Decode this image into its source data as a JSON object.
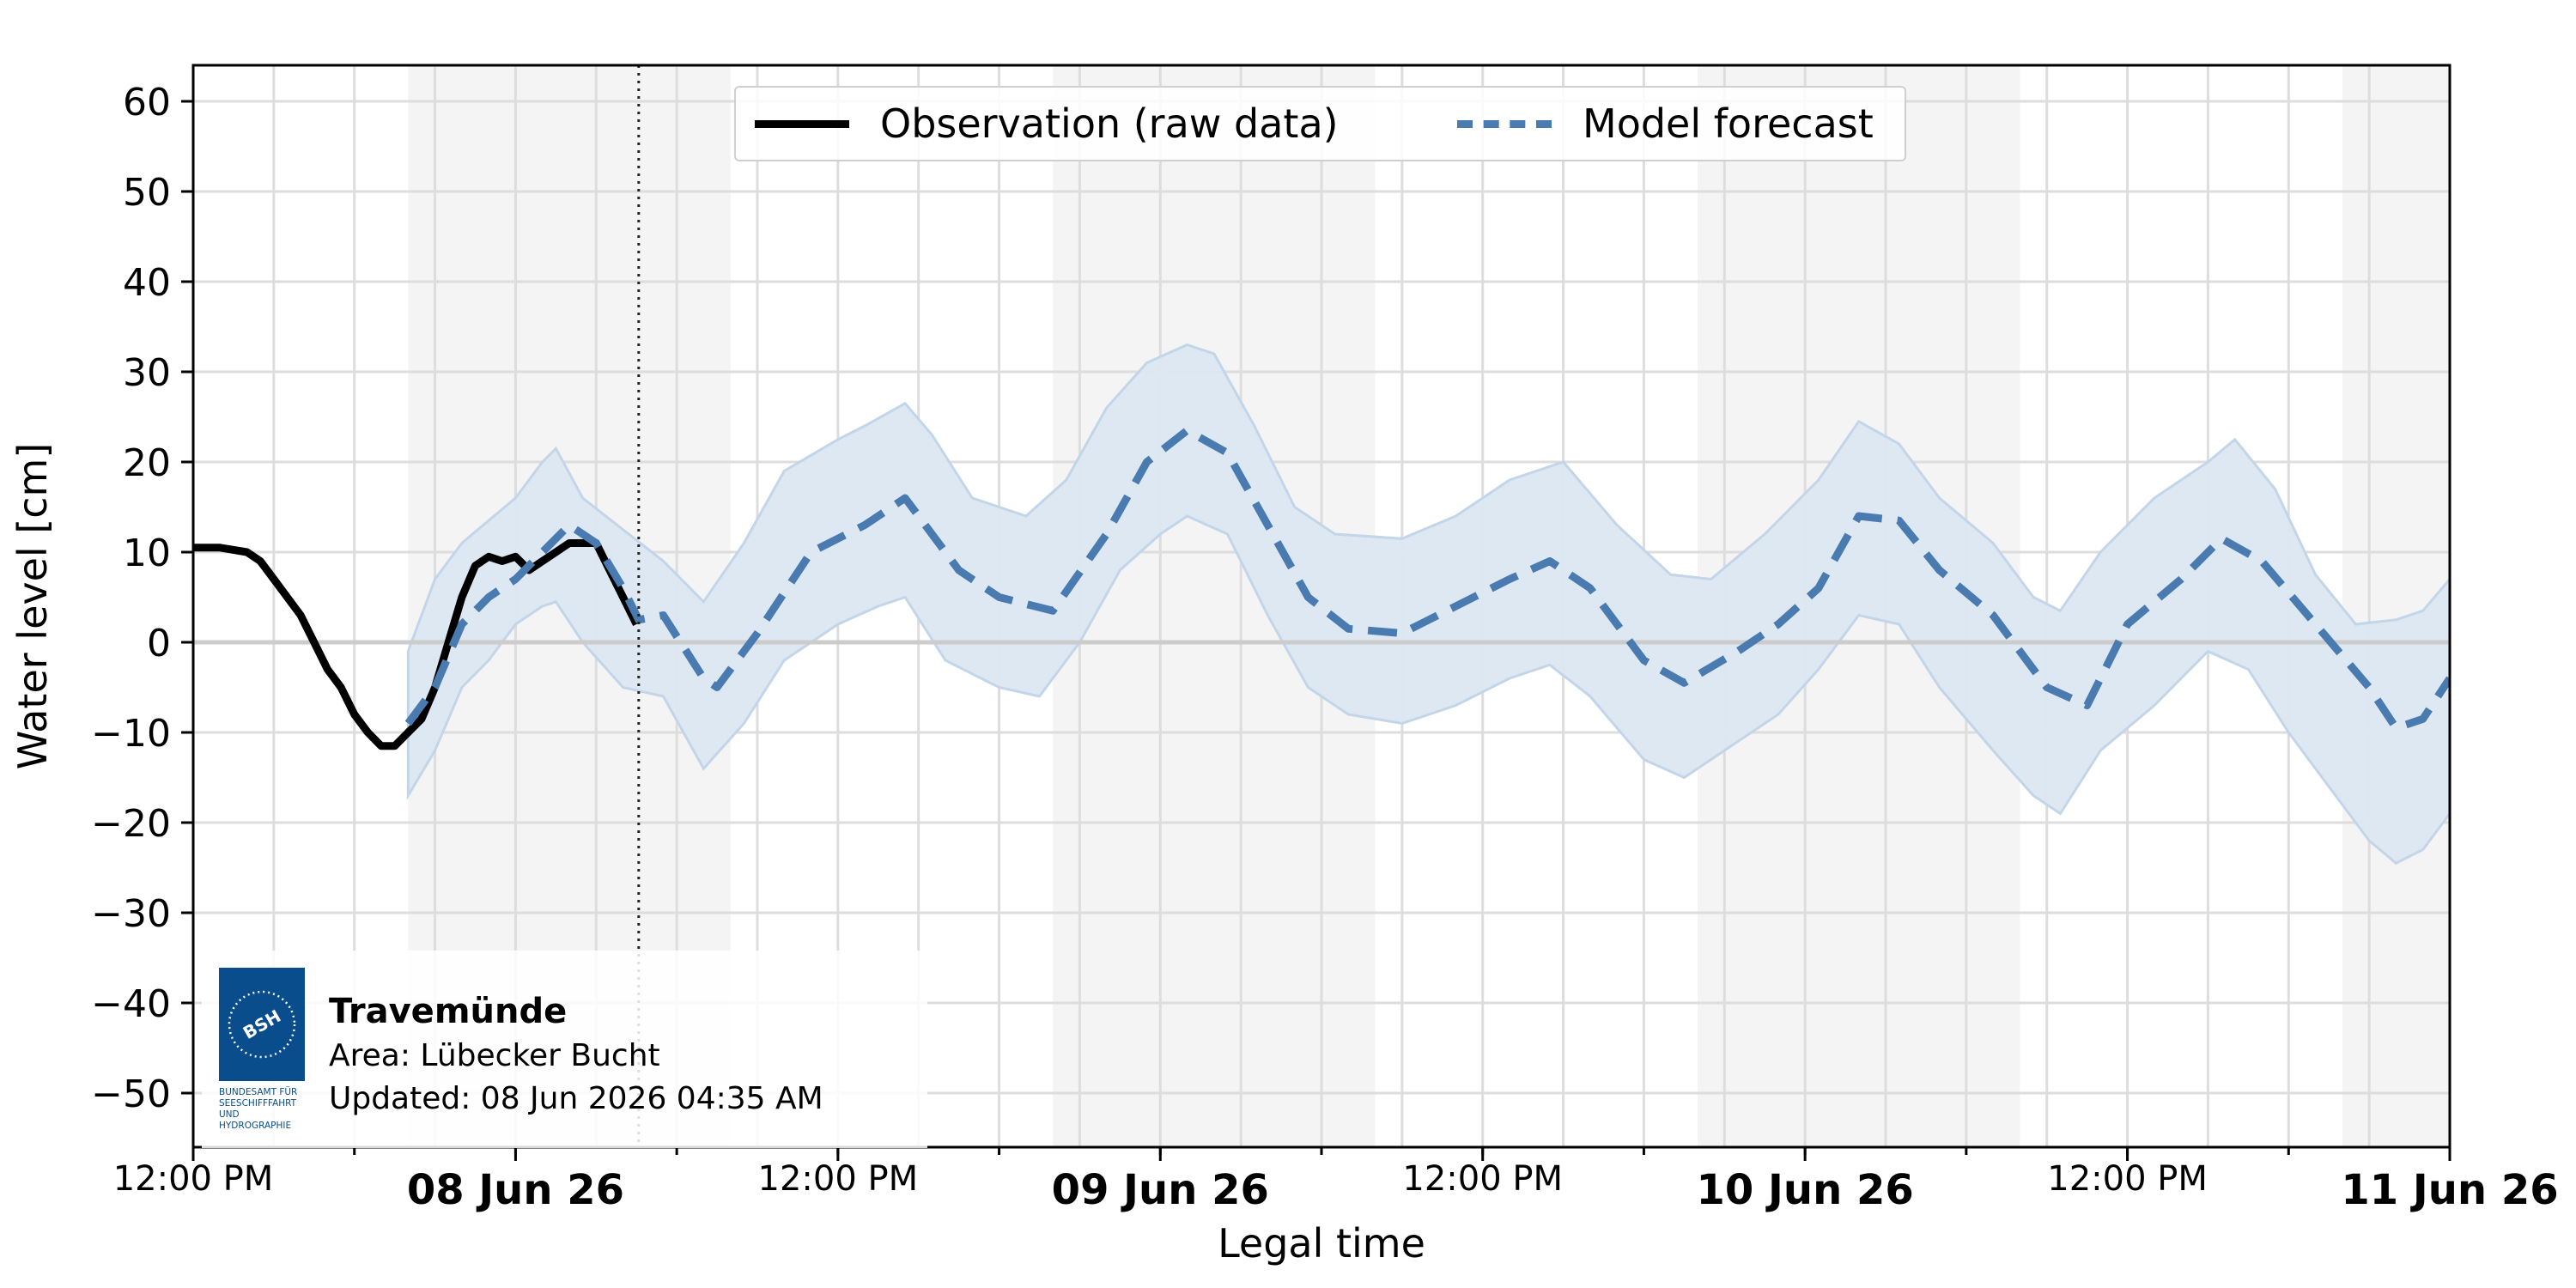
{
  "chart_data": {
    "type": "line",
    "xlabel": "Legal time",
    "ylabel": "Water level [cm]",
    "xlim": [
      "2026-06-07T12:00",
      "2026-06-11T00:00"
    ],
    "ylim": [
      -56,
      64
    ],
    "yticks": [
      60,
      50,
      40,
      30,
      20,
      10,
      0,
      -10,
      -20,
      -30,
      -40,
      -50
    ],
    "ytick_labels": [
      "60",
      "50",
      "40",
      "30",
      "20",
      "10",
      "0",
      "−10",
      "−20",
      "−30",
      "−40",
      "−50"
    ],
    "xticks": [
      {
        "t": "2026-06-07T12:00",
        "label": "12:00 PM",
        "bold": false
      },
      {
        "t": "2026-06-08T00:00",
        "label": "08 Jun 26",
        "bold": true
      },
      {
        "t": "2026-06-08T12:00",
        "label": "12:00 PM",
        "bold": false
      },
      {
        "t": "2026-06-09T00:00",
        "label": "09 Jun 26",
        "bold": true
      },
      {
        "t": "2026-06-09T12:00",
        "label": "12:00 PM",
        "bold": false
      },
      {
        "t": "2026-06-10T00:00",
        "label": "10 Jun 26",
        "bold": true
      },
      {
        "t": "2026-06-10T12:00",
        "label": "12:00 PM",
        "bold": false
      },
      {
        "t": "2026-06-11T00:00",
        "label": "11 Jun 26",
        "bold": true
      }
    ],
    "grid": true,
    "legend_position": "top-center",
    "now_marker": "2026-06-08T04:35",
    "night_bands": [
      [
        "2026-06-07T20:00",
        "2026-06-08T08:00"
      ],
      [
        "2026-06-08T20:00",
        "2026-06-09T08:00"
      ],
      [
        "2026-06-09T20:00",
        "2026-06-10T08:00"
      ],
      [
        "2026-06-10T20:00",
        "2026-06-11T00:00"
      ]
    ],
    "series": [
      {
        "name": "Observation (raw data)",
        "color": "#000000",
        "style": "solid",
        "points": [
          [
            "2026-06-07T12:00",
            10.5
          ],
          [
            "2026-06-07T13:00",
            10.5
          ],
          [
            "2026-06-07T14:00",
            10
          ],
          [
            "2026-06-07T14:30",
            9
          ],
          [
            "2026-06-07T15:00",
            7
          ],
          [
            "2026-06-07T15:30",
            5
          ],
          [
            "2026-06-07T16:00",
            3
          ],
          [
            "2026-06-07T16:30",
            0
          ],
          [
            "2026-06-07T17:00",
            -3
          ],
          [
            "2026-06-07T17:30",
            -5
          ],
          [
            "2026-06-07T18:00",
            -8
          ],
          [
            "2026-06-07T18:30",
            -10
          ],
          [
            "2026-06-07T19:00",
            -11.5
          ],
          [
            "2026-06-07T19:30",
            -11.5
          ],
          [
            "2026-06-07T20:00",
            -10
          ],
          [
            "2026-06-07T20:30",
            -8.5
          ],
          [
            "2026-06-07T21:00",
            -5
          ],
          [
            "2026-06-07T21:30",
            0
          ],
          [
            "2026-06-07T22:00",
            5
          ],
          [
            "2026-06-07T22:30",
            8.5
          ],
          [
            "2026-06-07T23:00",
            9.5
          ],
          [
            "2026-06-07T23:30",
            9
          ],
          [
            "2026-06-08T00:00",
            9.5
          ],
          [
            "2026-06-08T00:30",
            8
          ],
          [
            "2026-06-08T01:00",
            9
          ],
          [
            "2026-06-08T01:30",
            10
          ],
          [
            "2026-06-08T02:00",
            11
          ],
          [
            "2026-06-08T02:30",
            11
          ],
          [
            "2026-06-08T03:00",
            11
          ],
          [
            "2026-06-08T03:30",
            8
          ],
          [
            "2026-06-08T04:00",
            5
          ],
          [
            "2026-06-08T04:30",
            2
          ]
        ]
      },
      {
        "name": "Model forecast",
        "color": "#4a7bb0",
        "style": "dashed",
        "points": [
          [
            "2026-06-07T20:00",
            -9
          ],
          [
            "2026-06-07T21:00",
            -5
          ],
          [
            "2026-06-07T22:00",
            2
          ],
          [
            "2026-06-07T23:00",
            5
          ],
          [
            "2026-06-08T00:00",
            7
          ],
          [
            "2026-06-08T01:00",
            10
          ],
          [
            "2026-06-08T02:00",
            13
          ],
          [
            "2026-06-08T03:00",
            11
          ],
          [
            "2026-06-08T04:00",
            6
          ],
          [
            "2026-06-08T04:35",
            2.5
          ],
          [
            "2026-06-08T05:30",
            3
          ],
          [
            "2026-06-08T07:00",
            -4
          ],
          [
            "2026-06-08T07:30",
            -5
          ],
          [
            "2026-06-08T09:00",
            1
          ],
          [
            "2026-06-08T11:00",
            10
          ],
          [
            "2026-06-08T13:00",
            13
          ],
          [
            "2026-06-08T14:30",
            16
          ],
          [
            "2026-06-08T16:30",
            8
          ],
          [
            "2026-06-08T18:00",
            5
          ],
          [
            "2026-06-08T20:00",
            3.5
          ],
          [
            "2026-06-08T22:00",
            12
          ],
          [
            "2026-06-08T23:30",
            20
          ],
          [
            "2026-06-09T01:00",
            23.5
          ],
          [
            "2026-06-09T02:30",
            21
          ],
          [
            "2026-06-09T04:00",
            13
          ],
          [
            "2026-06-09T05:30",
            5
          ],
          [
            "2026-06-09T07:00",
            1.5
          ],
          [
            "2026-06-09T09:00",
            1
          ],
          [
            "2026-06-09T11:00",
            4
          ],
          [
            "2026-06-09T13:00",
            7
          ],
          [
            "2026-06-09T14:30",
            9
          ],
          [
            "2026-06-09T16:00",
            6
          ],
          [
            "2026-06-09T18:00",
            -2
          ],
          [
            "2026-06-09T19:30",
            -4.5
          ],
          [
            "2026-06-09T21:30",
            -1
          ],
          [
            "2026-06-09T23:00",
            2
          ],
          [
            "2026-06-10T00:30",
            6
          ],
          [
            "2026-06-10T02:00",
            14
          ],
          [
            "2026-06-10T03:30",
            13.5
          ],
          [
            "2026-06-10T05:00",
            8
          ],
          [
            "2026-06-10T07:00",
            3
          ],
          [
            "2026-06-10T09:00",
            -5
          ],
          [
            "2026-06-10T10:30",
            -7
          ],
          [
            "2026-06-10T12:00",
            2
          ],
          [
            "2026-06-10T14:00",
            7
          ],
          [
            "2026-06-10T15:30",
            11.5
          ],
          [
            "2026-06-10T17:00",
            9
          ],
          [
            "2026-06-10T19:00",
            2
          ],
          [
            "2026-06-10T21:00",
            -5
          ],
          [
            "2026-06-10T22:00",
            -9.5
          ],
          [
            "2026-06-10T23:00",
            -8.5
          ],
          [
            "2026-06-11T00:00",
            -4
          ]
        ]
      }
    ],
    "uncertainty_band": {
      "color": "#dce7f2",
      "upper": [
        [
          "2026-06-07T20:00",
          -1
        ],
        [
          "2026-06-07T21:00",
          7
        ],
        [
          "2026-06-07T22:00",
          11
        ],
        [
          "2026-06-07T23:00",
          13.5
        ],
        [
          "2026-06-08T00:00",
          16
        ],
        [
          "2026-06-08T01:00",
          20
        ],
        [
          "2026-06-08T01:30",
          21.5
        ],
        [
          "2026-06-08T02:30",
          16
        ],
        [
          "2026-06-08T04:00",
          12.5
        ],
        [
          "2026-06-08T05:30",
          9
        ],
        [
          "2026-06-08T07:00",
          4.5
        ],
        [
          "2026-06-08T08:30",
          11
        ],
        [
          "2026-06-08T10:00",
          19
        ],
        [
          "2026-06-08T12:00",
          22.5
        ],
        [
          "2026-06-08T13:00",
          24
        ],
        [
          "2026-06-08T14:30",
          26.5
        ],
        [
          "2026-06-08T15:30",
          23
        ],
        [
          "2026-06-08T17:00",
          16
        ],
        [
          "2026-06-08T19:00",
          14
        ],
        [
          "2026-06-08T20:30",
          18
        ],
        [
          "2026-06-08T22:00",
          26
        ],
        [
          "2026-06-08T23:30",
          31
        ],
        [
          "2026-06-09T01:00",
          33
        ],
        [
          "2026-06-09T02:00",
          32
        ],
        [
          "2026-06-09T03:30",
          24
        ],
        [
          "2026-06-09T05:00",
          15
        ],
        [
          "2026-06-09T06:30",
          12
        ],
        [
          "2026-06-09T09:00",
          11.5
        ],
        [
          "2026-06-09T11:00",
          14
        ],
        [
          "2026-06-09T13:00",
          18
        ],
        [
          "2026-06-09T15:00",
          20
        ],
        [
          "2026-06-09T17:00",
          13
        ],
        [
          "2026-06-09T19:00",
          7.5
        ],
        [
          "2026-06-09T20:30",
          7
        ],
        [
          "2026-06-09T22:30",
          12
        ],
        [
          "2026-06-10T00:30",
          18
        ],
        [
          "2026-06-10T02:00",
          24.5
        ],
        [
          "2026-06-10T03:30",
          22
        ],
        [
          "2026-06-10T05:00",
          16
        ],
        [
          "2026-06-10T07:00",
          11
        ],
        [
          "2026-06-10T08:30",
          5
        ],
        [
          "2026-06-10T09:30",
          3.5
        ],
        [
          "2026-06-10T11:00",
          10
        ],
        [
          "2026-06-10T13:00",
          16
        ],
        [
          "2026-06-10T15:00",
          20
        ],
        [
          "2026-06-10T16:00",
          22.5
        ],
        [
          "2026-06-10T17:30",
          17
        ],
        [
          "2026-06-10T19:00",
          7.5
        ],
        [
          "2026-06-10T20:30",
          2
        ],
        [
          "2026-06-10T22:00",
          2.5
        ],
        [
          "2026-06-10T23:00",
          3.5
        ],
        [
          "2026-06-11T00:00",
          7
        ]
      ],
      "lower": [
        [
          "2026-06-07T20:00",
          -17
        ],
        [
          "2026-06-07T21:00",
          -12
        ],
        [
          "2026-06-07T22:00",
          -5
        ],
        [
          "2026-06-07T23:00",
          -2
        ],
        [
          "2026-06-08T00:00",
          2
        ],
        [
          "2026-06-08T01:00",
          4
        ],
        [
          "2026-06-08T01:30",
          4.5
        ],
        [
          "2026-06-08T02:30",
          0
        ],
        [
          "2026-06-08T04:00",
          -5
        ],
        [
          "2026-06-08T05:30",
          -6
        ],
        [
          "2026-06-08T07:00",
          -14
        ],
        [
          "2026-06-08T08:30",
          -9
        ],
        [
          "2026-06-08T10:00",
          -2
        ],
        [
          "2026-06-08T12:00",
          2
        ],
        [
          "2026-06-08T13:30",
          4
        ],
        [
          "2026-06-08T14:30",
          5
        ],
        [
          "2026-06-08T16:00",
          -2
        ],
        [
          "2026-06-08T18:00",
          -5
        ],
        [
          "2026-06-08T19:30",
          -6
        ],
        [
          "2026-06-08T21:00",
          0
        ],
        [
          "2026-06-08T22:30",
          8
        ],
        [
          "2026-06-09T00:00",
          12
        ],
        [
          "2026-06-09T01:00",
          14
        ],
        [
          "2026-06-09T02:30",
          12
        ],
        [
          "2026-06-09T04:00",
          3
        ],
        [
          "2026-06-09T05:30",
          -5
        ],
        [
          "2026-06-09T07:00",
          -8
        ],
        [
          "2026-06-09T09:00",
          -9
        ],
        [
          "2026-06-09T11:00",
          -7
        ],
        [
          "2026-06-09T13:00",
          -4
        ],
        [
          "2026-06-09T14:30",
          -2.5
        ],
        [
          "2026-06-09T16:00",
          -6
        ],
        [
          "2026-06-09T18:00",
          -13
        ],
        [
          "2026-06-09T19:30",
          -15
        ],
        [
          "2026-06-09T21:30",
          -11
        ],
        [
          "2026-06-09T23:00",
          -8
        ],
        [
          "2026-06-10T00:30",
          -3
        ],
        [
          "2026-06-10T02:00",
          3
        ],
        [
          "2026-06-10T03:30",
          2
        ],
        [
          "2026-06-10T05:00",
          -5
        ],
        [
          "2026-06-10T07:00",
          -12
        ],
        [
          "2026-06-10T08:30",
          -17
        ],
        [
          "2026-06-10T09:30",
          -19
        ],
        [
          "2026-06-10T11:00",
          -12
        ],
        [
          "2026-06-10T13:00",
          -7
        ],
        [
          "2026-06-10T15:00",
          -1
        ],
        [
          "2026-06-10T16:30",
          -3
        ],
        [
          "2026-06-10T18:00",
          -10
        ],
        [
          "2026-06-10T19:30",
          -16
        ],
        [
          "2026-06-10T21:00",
          -22
        ],
        [
          "2026-06-10T22:00",
          -24.5
        ],
        [
          "2026-06-10T23:00",
          -23
        ],
        [
          "2026-06-11T00:00",
          -19
        ]
      ]
    }
  },
  "info": {
    "station": "Travemünde",
    "area": "Area: Lübecker Bucht",
    "updated": "Updated: 08 Jun 2026 04:35 AM",
    "logo_mark": "BSH",
    "logo_lines": [
      "BUNDESAMT FÜR",
      "SEESCHIFFFAHRT",
      "UND",
      "HYDROGRAPHIE"
    ],
    "logo_color": "#0a4d8c"
  }
}
